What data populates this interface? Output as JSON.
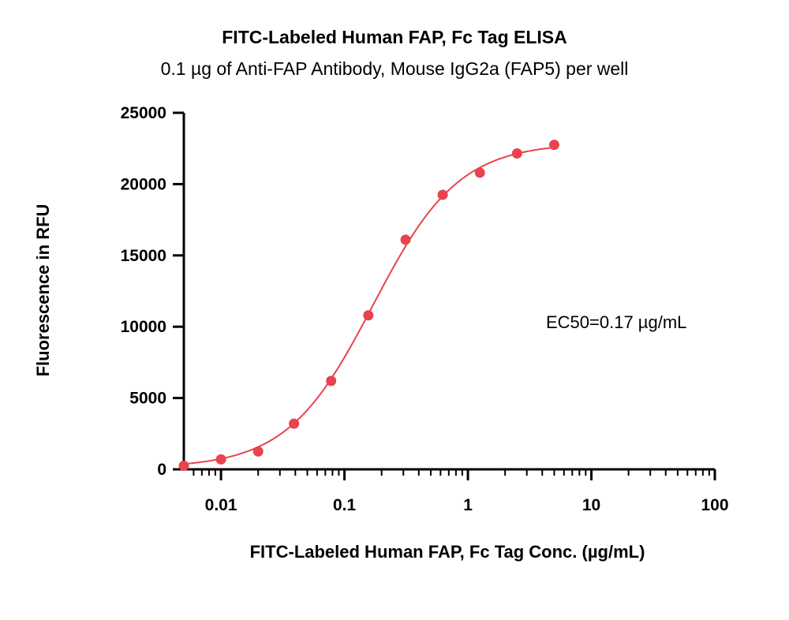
{
  "chart_data": {
    "type": "scatter",
    "title": "FITC-Labeled Human FAP, Fc Tag ELISA",
    "subtitle": "0.1 µg of Anti-FAP Antibody, Mouse IgG2a (FAP5) per well",
    "xlabel": "FITC-Labeled Human FAP, Fc Tag Conc. (µg/mL)",
    "ylabel": "Fluorescence in RFU",
    "x_scale": "log",
    "xlim": [
      0.005,
      100
    ],
    "ylim": [
      0,
      25000
    ],
    "x_ticks": [
      0.01,
      0.1,
      1,
      10,
      100
    ],
    "x_tick_labels": [
      "0.01",
      "0.1",
      "1",
      "10",
      "100"
    ],
    "y_ticks": [
      0,
      5000,
      10000,
      15000,
      20000,
      25000
    ],
    "y_tick_labels": [
      "0",
      "5000",
      "10000",
      "15000",
      "20000",
      "25000"
    ],
    "series": [
      {
        "color": "#e8434f",
        "x": [
          0.005,
          0.01,
          0.02,
          0.039,
          0.078,
          0.156,
          0.3125,
          0.625,
          1.25,
          2.5,
          5
        ],
        "y": [
          250,
          700,
          1250,
          3200,
          6200,
          10800,
          16100,
          19250,
          20800,
          22150,
          22750
        ],
        "fit": {
          "model": "4PL",
          "bottom": 100,
          "top": 22900,
          "ec50": 0.17,
          "hill": 1.25
        }
      }
    ],
    "annotations": [
      {
        "text": "EC50=0.17 µg/mL"
      }
    ],
    "grid": false,
    "legend": "none"
  }
}
